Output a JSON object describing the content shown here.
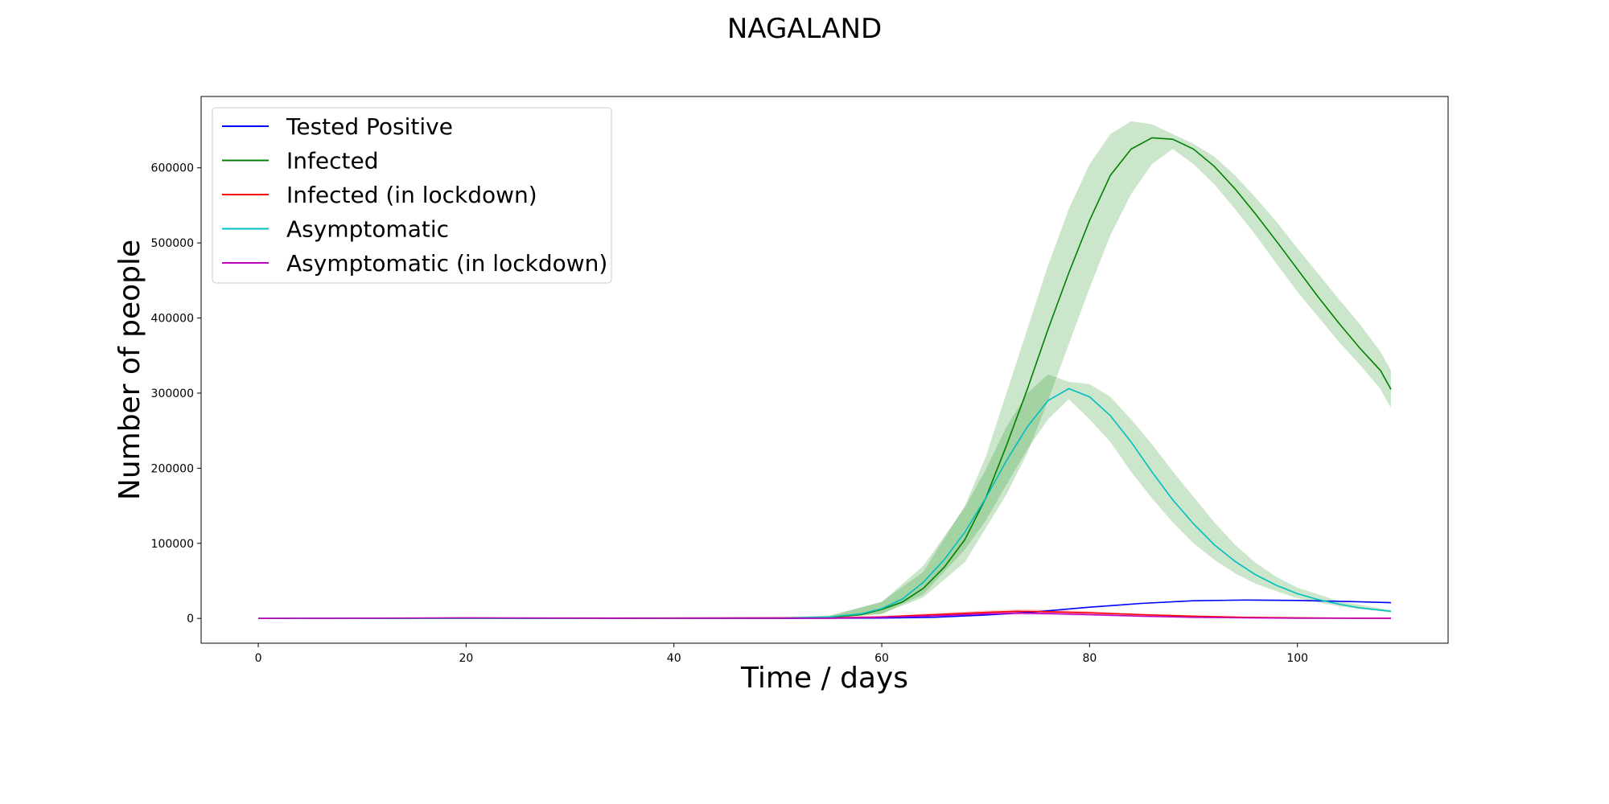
{
  "chart_data": {
    "type": "line",
    "title": "NAGALAND",
    "xlabel": "Time / days",
    "ylabel": "Number of people",
    "xlim": [
      -5.5,
      114.5
    ],
    "ylim": [
      -33000,
      695000
    ],
    "xticks": [
      0,
      20,
      40,
      60,
      80,
      100
    ],
    "yticks": [
      0,
      100000,
      200000,
      300000,
      400000,
      500000,
      600000
    ],
    "grid": false,
    "legend_position": "upper-left",
    "series": [
      {
        "name": "Tested Positive",
        "color": "#0000ff",
        "points": [
          [
            0,
            0
          ],
          [
            50,
            0
          ],
          [
            60,
            500
          ],
          [
            65,
            1500
          ],
          [
            70,
            4500
          ],
          [
            75,
            9000
          ],
          [
            80,
            15000
          ],
          [
            85,
            20000
          ],
          [
            90,
            23500
          ],
          [
            95,
            24500
          ],
          [
            100,
            24000
          ],
          [
            105,
            22500
          ],
          [
            109,
            21000
          ]
        ]
      },
      {
        "name": "Infected",
        "color": "#008000",
        "points": [
          [
            0,
            0
          ],
          [
            50,
            200
          ],
          [
            55,
            1500
          ],
          [
            58,
            5000
          ],
          [
            60,
            12000
          ],
          [
            62,
            22000
          ],
          [
            64,
            40000
          ],
          [
            66,
            68000
          ],
          [
            68,
            105000
          ],
          [
            70,
            160000
          ],
          [
            72,
            230000
          ],
          [
            74,
            305000
          ],
          [
            76,
            385000
          ],
          [
            78,
            460000
          ],
          [
            80,
            530000
          ],
          [
            82,
            590000
          ],
          [
            84,
            625000
          ],
          [
            86,
            640000
          ],
          [
            88,
            638000
          ],
          [
            90,
            625000
          ],
          [
            92,
            602000
          ],
          [
            94,
            572000
          ],
          [
            96,
            538000
          ],
          [
            98,
            502000
          ],
          [
            100,
            465000
          ],
          [
            102,
            428000
          ],
          [
            104,
            393000
          ],
          [
            106,
            360000
          ],
          [
            108,
            330000
          ],
          [
            109,
            305000
          ]
        ],
        "band": {
          "color": "#008000",
          "lower": [
            [
              0,
              0
            ],
            [
              50,
              0
            ],
            [
              55,
              500
            ],
            [
              60,
              6000
            ],
            [
              64,
              28000
            ],
            [
              68,
              75000
            ],
            [
              72,
              165000
            ],
            [
              74,
              220000
            ],
            [
              76,
              290000
            ],
            [
              78,
              365000
            ],
            [
              80,
              440000
            ],
            [
              82,
              510000
            ],
            [
              84,
              565000
            ],
            [
              86,
              605000
            ],
            [
              88,
              625000
            ],
            [
              90,
              605000
            ],
            [
              92,
              578000
            ],
            [
              94,
              545000
            ],
            [
              96,
              510000
            ],
            [
              98,
              472000
            ],
            [
              100,
              435000
            ],
            [
              104,
              368000
            ],
            [
              106,
              338000
            ],
            [
              108,
              305000
            ],
            [
              109,
              280000
            ]
          ],
          "upper": [
            [
              0,
              0
            ],
            [
              50,
              500
            ],
            [
              55,
              3000
            ],
            [
              60,
              22000
            ],
            [
              64,
              62000
            ],
            [
              68,
              150000
            ],
            [
              70,
              215000
            ],
            [
              72,
              300000
            ],
            [
              74,
              385000
            ],
            [
              76,
              470000
            ],
            [
              78,
              545000
            ],
            [
              80,
              605000
            ],
            [
              82,
              645000
            ],
            [
              84,
              662000
            ],
            [
              86,
              658000
            ],
            [
              88,
              645000
            ],
            [
              90,
              632000
            ],
            [
              92,
              615000
            ],
            [
              94,
              590000
            ],
            [
              96,
              560000
            ],
            [
              98,
              528000
            ],
            [
              100,
              493000
            ],
            [
              104,
              425000
            ],
            [
              106,
              392000
            ],
            [
              108,
              355000
            ],
            [
              109,
              330000
            ]
          ]
        }
      },
      {
        "name": "Infected (in lockdown)",
        "color": "#ff0000",
        "points": [
          [
            0,
            0
          ],
          [
            55,
            500
          ],
          [
            60,
            2000
          ],
          [
            65,
            5000
          ],
          [
            70,
            8000
          ],
          [
            73,
            9500
          ],
          [
            76,
            9000
          ],
          [
            80,
            7500
          ],
          [
            85,
            5000
          ],
          [
            90,
            3000
          ],
          [
            95,
            1500
          ],
          [
            100,
            800
          ],
          [
            105,
            400
          ],
          [
            109,
            300
          ]
        ],
        "band": {
          "color": "#ff0000",
          "lower": [
            [
              0,
              0
            ],
            [
              60,
              1000
            ],
            [
              65,
              3500
            ],
            [
              70,
              6000
            ],
            [
              73,
              7500
            ],
            [
              76,
              7000
            ],
            [
              80,
              6000
            ],
            [
              85,
              3800
            ],
            [
              90,
              2200
            ],
            [
              95,
              1000
            ],
            [
              100,
              500
            ],
            [
              109,
              200
            ]
          ],
          "upper": [
            [
              0,
              0
            ],
            [
              60,
              3000
            ],
            [
              65,
              7000
            ],
            [
              70,
              10500
            ],
            [
              73,
              12000
            ],
            [
              76,
              11500
            ],
            [
              80,
              9500
            ],
            [
              85,
              6500
            ],
            [
              90,
              4000
            ],
            [
              95,
              2200
            ],
            [
              100,
              1200
            ],
            [
              109,
              500
            ]
          ]
        }
      },
      {
        "name": "Asymptomatic",
        "color": "#00bfbf",
        "points": [
          [
            0,
            0
          ],
          [
            50,
            300
          ],
          [
            55,
            2000
          ],
          [
            58,
            6000
          ],
          [
            60,
            13000
          ],
          [
            62,
            26000
          ],
          [
            64,
            48000
          ],
          [
            66,
            78000
          ],
          [
            68,
            115000
          ],
          [
            70,
            160000
          ],
          [
            72,
            210000
          ],
          [
            74,
            255000
          ],
          [
            76,
            290000
          ],
          [
            78,
            306000
          ],
          [
            80,
            295000
          ],
          [
            82,
            270000
          ],
          [
            84,
            235000
          ],
          [
            86,
            195000
          ],
          [
            88,
            158000
          ],
          [
            90,
            126000
          ],
          [
            92,
            98000
          ],
          [
            94,
            76000
          ],
          [
            96,
            58000
          ],
          [
            98,
            44000
          ],
          [
            100,
            33000
          ],
          [
            102,
            25000
          ],
          [
            104,
            19000
          ],
          [
            106,
            14000
          ],
          [
            108,
            11000
          ],
          [
            109,
            9500
          ]
        ],
        "band": {
          "color": "#008000",
          "lower": [
            [
              0,
              0
            ],
            [
              50,
              0
            ],
            [
              55,
              500
            ],
            [
              60,
              6000
            ],
            [
              64,
              32000
            ],
            [
              68,
              92000
            ],
            [
              70,
              130000
            ],
            [
              72,
              178000
            ],
            [
              74,
              225000
            ],
            [
              76,
              265000
            ],
            [
              78,
              292000
            ],
            [
              80,
              265000
            ],
            [
              82,
              235000
            ],
            [
              84,
              195000
            ],
            [
              86,
              160000
            ],
            [
              88,
              128000
            ],
            [
              90,
              100000
            ],
            [
              92,
              78000
            ],
            [
              94,
              60000
            ],
            [
              96,
              46000
            ],
            [
              98,
              36000
            ],
            [
              100,
              27000
            ],
            [
              104,
              16000
            ],
            [
              109,
              8000
            ]
          ],
          "upper": [
            [
              0,
              0
            ],
            [
              50,
              800
            ],
            [
              55,
              4000
            ],
            [
              60,
              22000
            ],
            [
              64,
              70000
            ],
            [
              68,
              148000
            ],
            [
              70,
              198000
            ],
            [
              72,
              255000
            ],
            [
              74,
              300000
            ],
            [
              76,
              325000
            ],
            [
              78,
              315000
            ],
            [
              80,
              312000
            ],
            [
              82,
              295000
            ],
            [
              84,
              265000
            ],
            [
              86,
              232000
            ],
            [
              88,
              196000
            ],
            [
              90,
              162000
            ],
            [
              92,
              128000
            ],
            [
              94,
              98000
            ],
            [
              96,
              74000
            ],
            [
              98,
              55000
            ],
            [
              100,
              41000
            ],
            [
              104,
              23000
            ],
            [
              109,
              11000
            ]
          ]
        }
      },
      {
        "name": "Asymptomatic (in lockdown)",
        "color": "#bf00bf",
        "points": [
          [
            0,
            0
          ],
          [
            20,
            800
          ],
          [
            40,
            200
          ],
          [
            55,
            300
          ],
          [
            60,
            1500
          ],
          [
            65,
            3500
          ],
          [
            70,
            6000
          ],
          [
            73,
            7000
          ],
          [
            76,
            6500
          ],
          [
            80,
            5000
          ],
          [
            85,
            3000
          ],
          [
            90,
            1500
          ],
          [
            95,
            700
          ],
          [
            100,
            300
          ],
          [
            109,
            100
          ]
        ],
        "band": {
          "color": "#bf00bf",
          "lower": [
            [
              0,
              0
            ],
            [
              60,
              800
            ],
            [
              65,
              2500
            ],
            [
              70,
              4000
            ],
            [
              73,
              4800
            ],
            [
              76,
              4500
            ],
            [
              80,
              3500
            ],
            [
              85,
              2000
            ],
            [
              90,
              900
            ],
            [
              100,
              100
            ],
            [
              109,
              0
            ]
          ],
          "upper": [
            [
              0,
              0
            ],
            [
              60,
              2500
            ],
            [
              65,
              5000
            ],
            [
              70,
              8500
            ],
            [
              73,
              9500
            ],
            [
              76,
              9000
            ],
            [
              80,
              7000
            ],
            [
              85,
              4200
            ],
            [
              90,
              2200
            ],
            [
              100,
              600
            ],
            [
              109,
              200
            ]
          ]
        }
      }
    ]
  }
}
